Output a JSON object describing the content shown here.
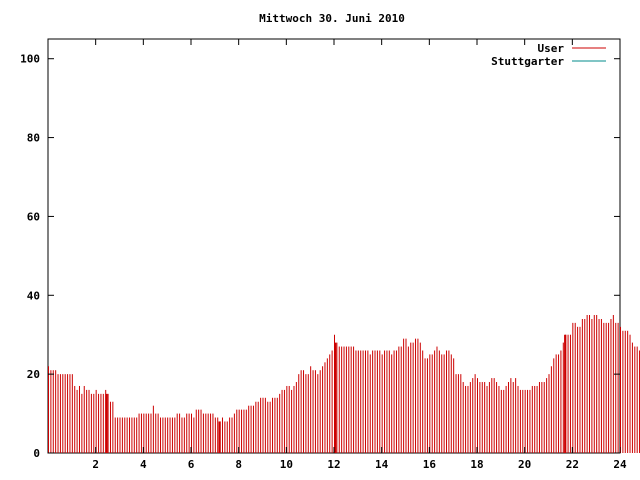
{
  "chart_data": {
    "type": "bar",
    "title": "Mittwoch 30. Juni 2010",
    "xlabel": "",
    "ylabel": "",
    "xlim": [
      0,
      24
    ],
    "ylim": [
      0,
      105
    ],
    "x_ticks": [
      2,
      4,
      6,
      8,
      10,
      12,
      14,
      16,
      18,
      20,
      22,
      24
    ],
    "y_ticks": [
      0,
      20,
      40,
      60,
      80,
      100
    ],
    "x_tick_labels": [
      "2",
      "4",
      "6",
      "8",
      "10",
      "12",
      "14",
      "16",
      "18",
      "20",
      "22",
      "24"
    ],
    "y_tick_labels": [
      "0",
      "20",
      "40",
      "60",
      "80",
      "100"
    ],
    "grid": false,
    "legend_position": "top-right",
    "series": [
      {
        "name": "User",
        "color": "#cc0000",
        "interval_hours": 0.1,
        "values": [
          22,
          21,
          21,
          21,
          20,
          20,
          20,
          20,
          20,
          20,
          20,
          17,
          16,
          17,
          15,
          17,
          16,
          16,
          15,
          15,
          16,
          15,
          15,
          15,
          16,
          15,
          13,
          13,
          9,
          9,
          9,
          9,
          9,
          9,
          9,
          9,
          9,
          9,
          10,
          10,
          10,
          10,
          10,
          10,
          12,
          10,
          10,
          9,
          9,
          9,
          9,
          9,
          9,
          9,
          10,
          10,
          9,
          9,
          10,
          10,
          10,
          9,
          11,
          11,
          11,
          10,
          10,
          10,
          10,
          10,
          9,
          9,
          8,
          9,
          8,
          8,
          9,
          9,
          10,
          11,
          11,
          11,
          11,
          11,
          12,
          12,
          12,
          13,
          13,
          14,
          14,
          14,
          13,
          13,
          14,
          14,
          14,
          15,
          16,
          16,
          17,
          17,
          16,
          17,
          18,
          20,
          21,
          21,
          20,
          20,
          22,
          21,
          21,
          20,
          21,
          22,
          23,
          24,
          25,
          26,
          30,
          28,
          27,
          27,
          27,
          27,
          27,
          27,
          27,
          26,
          26,
          26,
          26,
          26,
          26,
          25,
          26,
          26,
          26,
          26,
          25,
          26,
          26,
          26,
          25,
          26,
          26,
          27,
          27,
          29,
          29,
          27,
          28,
          28,
          29,
          29,
          28,
          26,
          24,
          24,
          25,
          25,
          26,
          27,
          26,
          25,
          25,
          26,
          26,
          25,
          24,
          20,
          20,
          20,
          18,
          17,
          17,
          18,
          19,
          20,
          19,
          18,
          18,
          18,
          17,
          18,
          19,
          19,
          18,
          17,
          16,
          16,
          17,
          18,
          19,
          18,
          19,
          17,
          16,
          16,
          16,
          16,
          16,
          17,
          17,
          17,
          18,
          18,
          18,
          19,
          20,
          22,
          24,
          25,
          25,
          26,
          28,
          30,
          30,
          30,
          33,
          33,
          32,
          32,
          34,
          34,
          35,
          35,
          34,
          35,
          35,
          34,
          34,
          33,
          33,
          33,
          34,
          35,
          33,
          33,
          32,
          31,
          31,
          31,
          30,
          28,
          27,
          27,
          26,
          25,
          26,
          25,
          25,
          24,
          23,
          21
        ],
        "highlight_marks": [
          2.45,
          7.2,
          12.05,
          21.7
        ]
      },
      {
        "name": "Stuttgarter",
        "color": "#008b8b",
        "values": []
      }
    ]
  }
}
